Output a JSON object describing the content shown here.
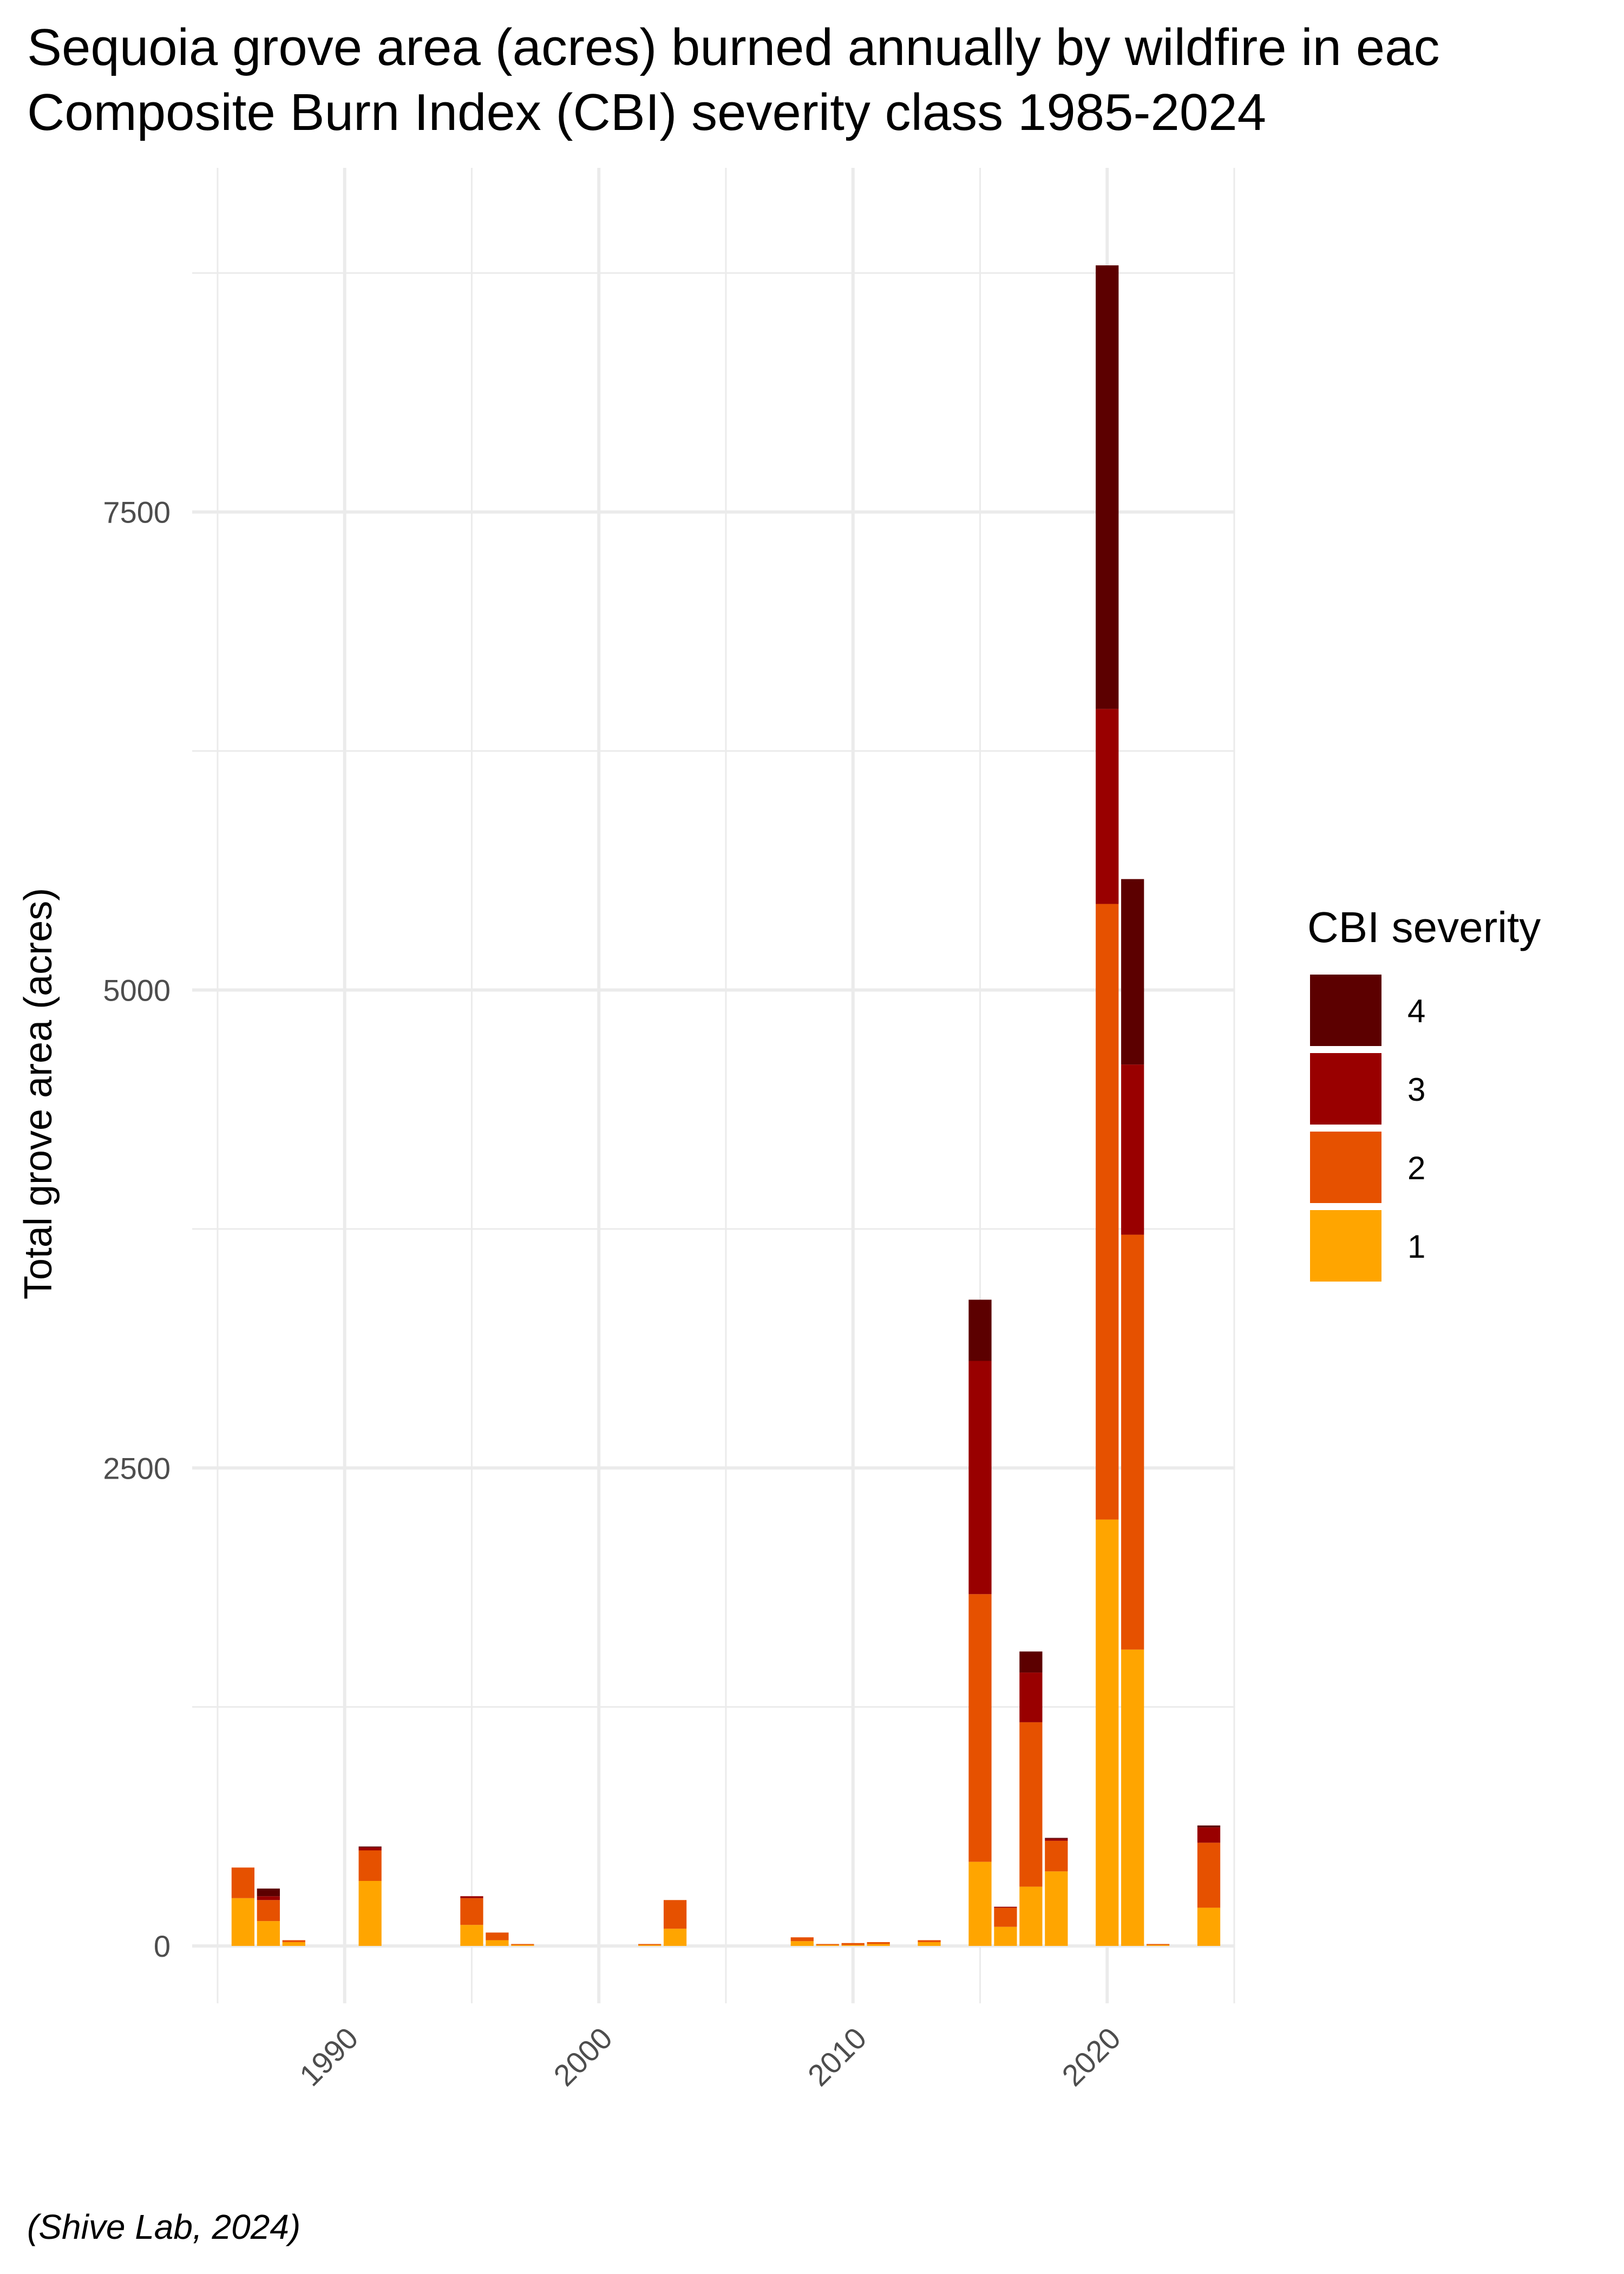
{
  "chart_data": {
    "type": "bar",
    "stacked": true,
    "title": "Sequoia grove area (acres) burned annually by wildfire in eac",
    "subtitle": "Composite Burn Index (CBI) severity class 1985-2024",
    "xlabel": "",
    "ylabel": "Total grove area (acres)",
    "caption": "(Shive Lab, 2024)",
    "xlim": [
      1984,
      2025
    ],
    "ylim": [
      -300,
      9300
    ],
    "x_ticks": [
      1990,
      2000,
      2010,
      2020
    ],
    "y_ticks": [
      0,
      2500,
      5000,
      7500
    ],
    "grid": true,
    "legend": {
      "title": "CBI severity",
      "position": "right",
      "order": [
        "4",
        "3",
        "2",
        "1"
      ]
    },
    "series": [
      {
        "name": "1",
        "color": "#ffa500",
        "x": [
          1986,
          1987,
          1988,
          1991,
          1995,
          1996,
          1997,
          2002,
          2003,
          2008,
          2009,
          2010,
          2011,
          2013,
          2015,
          2016,
          2017,
          2018,
          2020,
          2021,
          2022,
          2024
        ],
        "values": [
          250,
          130,
          20,
          340,
          110,
          30,
          5,
          5,
          90,
          25,
          5,
          5,
          10,
          20,
          440,
          100,
          310,
          390,
          2230,
          1550,
          5,
          200
        ]
      },
      {
        "name": "2",
        "color": "#e65100",
        "x": [
          1986,
          1987,
          1988,
          1991,
          1995,
          1996,
          1997,
          2002,
          2003,
          2008,
          2009,
          2010,
          2011,
          2013,
          2015,
          2016,
          2017,
          2018,
          2020,
          2021,
          2022,
          2024
        ],
        "values": [
          160,
          110,
          10,
          160,
          140,
          40,
          5,
          5,
          150,
          20,
          5,
          10,
          10,
          10,
          1400,
          100,
          860,
          160,
          3220,
          2170,
          5,
          340
        ]
      },
      {
        "name": "3",
        "color": "#990000",
        "x": [
          1987,
          1991,
          1995,
          2015,
          2016,
          2017,
          2018,
          2020,
          2021,
          2024
        ],
        "values": [
          20,
          15,
          10,
          1220,
          5,
          260,
          10,
          1020,
          890,
          80
        ]
      },
      {
        "name": "4",
        "color": "#5c0000",
        "x": [
          1987,
          1991,
          2015,
          2017,
          2018,
          2020,
          2021,
          2024
        ],
        "values": [
          40,
          5,
          320,
          110,
          5,
          2320,
          970,
          10
        ]
      }
    ]
  }
}
